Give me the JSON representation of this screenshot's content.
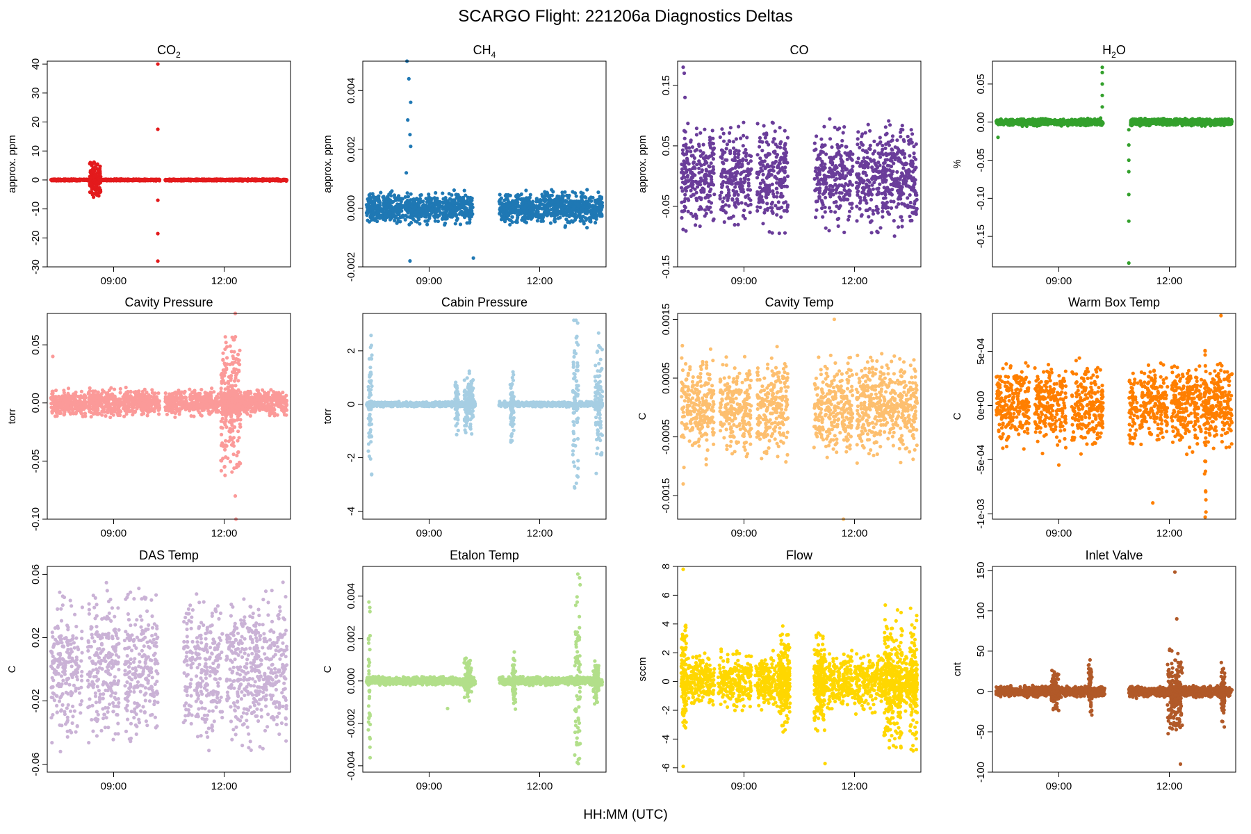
{
  "title": "SCARGO Flight: 221206a  Diagnostics Deltas",
  "xlabel": "HH:MM (UTC)",
  "colors": {
    "co2": "#e31a1c",
    "ch4": "#1f78b4",
    "co": "#6a3d9a",
    "h2o": "#33a02c",
    "cavity_pressure": "#fb9a99",
    "cabin_pressure": "#a6cee3",
    "cavity_temp": "#fdbf6f",
    "warm_box_temp": "#ff7f00",
    "das_temp": "#cab2d6",
    "etalon_temp": "#b2df8a",
    "flow": "#ffd700",
    "inlet_valve": "#b15928"
  },
  "chart_data": [
    {
      "type": "scatter",
      "key": "co2",
      "title_main": "CO",
      "title_sub": "2",
      "ylabel": "approx. ppm",
      "color": "#e31a1c",
      "xlim": [
        7.2,
        13.8
      ],
      "ylim": [
        -30,
        41
      ],
      "yticks": [
        -30,
        -20,
        -10,
        0,
        10,
        20,
        30,
        40
      ],
      "ytick_labels": [
        "-30",
        "-20",
        "-10",
        "0",
        "10",
        "20",
        "30",
        "40"
      ],
      "xticks": [
        9,
        12
      ],
      "xtick_labels": [
        "09:00",
        "12:00"
      ],
      "segments": [
        [
          7.3,
          10.25
        ],
        [
          10.4,
          13.7
        ]
      ],
      "spread": 0.4,
      "spikes": [
        [
          8.35,
          8.65,
          6.5
        ]
      ],
      "outliers": [
        [
          10.2,
          40
        ],
        [
          10.2,
          17.5
        ],
        [
          10.2,
          -7
        ],
        [
          10.2,
          -18.5
        ],
        [
          10.2,
          -28
        ]
      ]
    },
    {
      "type": "scatter",
      "key": "ch4",
      "title_main": "CH",
      "title_sub": "4",
      "ylabel": "approx. ppm",
      "color": "#1f78b4",
      "xlim": [
        7.2,
        13.8
      ],
      "ylim": [
        -0.002,
        0.005
      ],
      "yticks": [
        -0.002,
        0,
        0.002,
        0.004
      ],
      "ytick_labels": [
        "-0.002",
        "0.000",
        "0.002",
        "0.004"
      ],
      "xticks": [
        9,
        12
      ],
      "xtick_labels": [
        "09:00",
        "12:00"
      ],
      "segments": [
        [
          7.3,
          8.3
        ],
        [
          8.35,
          9.3
        ],
        [
          9.35,
          10.2
        ],
        [
          10.9,
          11.85
        ],
        [
          11.9,
          13.7
        ]
      ],
      "spread": 0.0007,
      "spikes": [],
      "outliers": [
        [
          8.4,
          0.005
        ],
        [
          8.45,
          0.0044
        ],
        [
          8.5,
          0.0036
        ],
        [
          8.42,
          0.003
        ],
        [
          8.48,
          0.0025
        ],
        [
          8.5,
          0.0021
        ],
        [
          8.38,
          0.0012
        ],
        [
          8.48,
          -0.0018
        ],
        [
          10.2,
          -0.0017
        ]
      ]
    },
    {
      "type": "scatter",
      "key": "co",
      "title_main": "CO",
      "title_sub": "",
      "ylabel": "approx. ppm",
      "color": "#6a3d9a",
      "xlim": [
        7.2,
        13.8
      ],
      "ylim": [
        -0.15,
        0.19
      ],
      "yticks": [
        -0.15,
        -0.05,
        0.05,
        0.15
      ],
      "ytick_labels": [
        "-0.15",
        "-0.05",
        "0.05",
        "0.15"
      ],
      "xticks": [
        9,
        12
      ],
      "xtick_labels": [
        "09:00",
        "12:00"
      ],
      "segments": [
        [
          7.3,
          8.2
        ],
        [
          8.35,
          9.2
        ],
        [
          9.35,
          10.2
        ],
        [
          10.9,
          11.25
        ],
        [
          11.3,
          11.95
        ],
        [
          12.05,
          13.7
        ]
      ],
      "spread": 0.11,
      "spikes": [],
      "outliers": [
        [
          7.35,
          0.18
        ],
        [
          7.38,
          0.17
        ],
        [
          7.4,
          0.13
        ]
      ]
    },
    {
      "type": "scatter",
      "key": "h2o",
      "title_main": "H",
      "title_sub": "2",
      "title_after": "O",
      "ylabel": "%",
      "color": "#33a02c",
      "xlim": [
        7.2,
        13.8
      ],
      "ylim": [
        -0.19,
        0.08
      ],
      "yticks": [
        -0.15,
        -0.1,
        -0.05,
        0,
        0.05
      ],
      "ytick_labels": [
        "-0.15",
        "-0.10",
        "-0.05",
        "0.00",
        "0.05"
      ],
      "xticks": [
        9,
        12
      ],
      "xtick_labels": [
        "09:00",
        "12:00"
      ],
      "segments": [
        [
          7.3,
          10.2
        ],
        [
          10.95,
          13.7
        ]
      ],
      "spread": 0.006,
      "spikes": [],
      "outliers": [
        [
          10.18,
          0.072
        ],
        [
          10.18,
          0.065
        ],
        [
          10.18,
          0.05
        ],
        [
          10.18,
          0.035
        ],
        [
          10.18,
          0.02
        ],
        [
          7.35,
          -0.02
        ],
        [
          10.9,
          -0.01
        ],
        [
          10.9,
          -0.03
        ],
        [
          10.9,
          -0.05
        ],
        [
          10.9,
          -0.065
        ],
        [
          10.9,
          -0.095
        ],
        [
          10.9,
          -0.13
        ],
        [
          10.9,
          -0.185
        ]
      ]
    },
    {
      "type": "scatter",
      "key": "cavity_pressure",
      "title_main": "Cavity Pressure",
      "ylabel": "torr",
      "color": "#fb9a99",
      "xlim": [
        7.2,
        13.8
      ],
      "ylim": [
        -0.1,
        0.077
      ],
      "yticks": [
        -0.1,
        -0.05,
        0,
        0.05
      ],
      "ytick_labels": [
        "-0.10",
        "-0.05",
        "0.00",
        "0.05"
      ],
      "xticks": [
        9,
        12
      ],
      "xtick_labels": [
        "09:00",
        "12:00"
      ],
      "segments": [
        [
          7.3,
          8.25
        ],
        [
          8.3,
          9.2
        ],
        [
          9.25,
          10.25
        ],
        [
          10.4,
          11.0
        ],
        [
          11.05,
          11.85
        ],
        [
          11.9,
          12.5
        ],
        [
          12.5,
          13.7
        ]
      ],
      "spread": 0.015,
      "spikes": [
        [
          11.9,
          12.45,
          0.065
        ]
      ],
      "outliers": [
        [
          7.35,
          0.04
        ],
        [
          12.3,
          0.077
        ],
        [
          12.32,
          -0.1
        ],
        [
          12.3,
          -0.08
        ]
      ]
    },
    {
      "type": "scatter",
      "key": "cabin_pressure",
      "title_main": "Cabin Pressure",
      "ylabel": "torr",
      "color": "#a6cee3",
      "xlim": [
        7.2,
        13.8
      ],
      "ylim": [
        -4.3,
        3.4
      ],
      "yticks": [
        -4,
        -2,
        0,
        2
      ],
      "ytick_labels": [
        "-4",
        "-2",
        "0",
        "2"
      ],
      "xticks": [
        9,
        12
      ],
      "xtick_labels": [
        "09:00",
        "12:00"
      ],
      "segments": [
        [
          7.3,
          10.25
        ],
        [
          10.9,
          13.7
        ]
      ],
      "spread": 0.12,
      "spikes": [
        [
          7.35,
          7.45,
          3.2
        ],
        [
          9.7,
          9.8,
          1.3
        ],
        [
          9.95,
          10.2,
          1.3
        ],
        [
          11.2,
          11.3,
          1.5
        ],
        [
          12.9,
          13.05,
          4.2
        ],
        [
          13.5,
          13.7,
          3.0
        ]
      ],
      "outliers": []
    },
    {
      "type": "scatter",
      "key": "cavity_temp",
      "title_main": "Cavity Temp",
      "ylabel": "C",
      "color": "#fdbf6f",
      "xlim": [
        7.2,
        13.8
      ],
      "ylim": [
        -0.0019,
        0.0016
      ],
      "yticks": [
        -0.0015,
        -0.0005,
        0.0005,
        0.0015
      ],
      "ytick_labels": [
        "-0.0015",
        "-0.0005",
        "0.0005",
        "0.0015"
      ],
      "xticks": [
        9,
        12
      ],
      "xtick_labels": [
        "09:00",
        "12:00"
      ],
      "segments": [
        [
          7.3,
          8.2
        ],
        [
          8.35,
          9.2
        ],
        [
          9.35,
          10.2
        ],
        [
          10.9,
          11.15
        ],
        [
          11.2,
          11.95
        ],
        [
          12.05,
          13.7
        ]
      ],
      "spread": 0.0011,
      "spikes": [],
      "outliers": [
        [
          11.45,
          0.0015
        ],
        [
          11.7,
          -0.0019
        ],
        [
          7.35,
          -0.0013
        ]
      ]
    },
    {
      "type": "scatter",
      "key": "warm_box_temp",
      "title_main": "Warm Box Temp",
      "ylabel": "C",
      "color": "#ff7f00",
      "xlim": [
        7.2,
        13.8
      ],
      "ylim": [
        -0.00105,
        0.00085
      ],
      "yticks": [
        -0.001,
        -0.0005,
        0,
        0.0005
      ],
      "ytick_labels": [
        "-1e-03",
        "-5e-04",
        "0e+00",
        "5e-04"
      ],
      "xticks": [
        9,
        12
      ],
      "xtick_labels": [
        "09:00",
        "12:00"
      ],
      "segments": [
        [
          7.3,
          8.2
        ],
        [
          8.35,
          9.2
        ],
        [
          9.35,
          10.2
        ],
        [
          10.9,
          11.15
        ],
        [
          11.2,
          11.95
        ],
        [
          12.05,
          13.7
        ]
      ],
      "spread": 0.0005,
      "spikes": [
        [
          12.95,
          13.0,
          0.00105
        ]
      ],
      "outliers": [
        [
          13.4,
          0.00083
        ],
        [
          11.55,
          -0.0009
        ],
        [
          9.0,
          -0.00055
        ]
      ]
    },
    {
      "type": "scatter",
      "key": "das_temp",
      "title_main": "DAS Temp",
      "ylabel": "C",
      "color": "#cab2d6",
      "xlim": [
        7.2,
        13.8
      ],
      "ylim": [
        -0.065,
        0.065
      ],
      "yticks": [
        -0.06,
        -0.02,
        0.02,
        0.06
      ],
      "ytick_labels": [
        "-0.06",
        "-0.02",
        "0.02",
        "0.06"
      ],
      "xticks": [
        9,
        12
      ],
      "xtick_labels": [
        "09:00",
        "12:00"
      ],
      "segments": [
        [
          7.3,
          8.15
        ],
        [
          8.3,
          9.15
        ],
        [
          9.3,
          10.2
        ],
        [
          10.9,
          11.15
        ],
        [
          11.2,
          11.95
        ],
        [
          12.05,
          13.7
        ]
      ],
      "spread": 0.062,
      "spikes": [],
      "outliers": []
    },
    {
      "type": "scatter",
      "key": "etalon_temp",
      "title_main": "Etalon Temp",
      "ylabel": "C",
      "color": "#b2df8a",
      "xlim": [
        7.2,
        13.8
      ],
      "ylim": [
        -0.0043,
        0.0054
      ],
      "yticks": [
        -0.004,
        -0.002,
        0,
        0.002,
        0.004
      ],
      "ytick_labels": [
        "-0.004",
        "-0.002",
        "0.000",
        "0.002",
        "0.004"
      ],
      "xticks": [
        9,
        12
      ],
      "xtick_labels": [
        "09:00",
        "12:00"
      ],
      "segments": [
        [
          7.3,
          10.25
        ],
        [
          10.9,
          13.7
        ]
      ],
      "spread": 0.00025,
      "spikes": [
        [
          7.35,
          7.4,
          0.0047
        ],
        [
          9.95,
          10.15,
          0.0012
        ],
        [
          11.25,
          11.35,
          0.0015
        ],
        [
          12.95,
          13.1,
          0.0052
        ],
        [
          13.45,
          13.6,
          0.0012
        ]
      ],
      "outliers": [
        [
          13.05,
          -0.0037
        ],
        [
          13.05,
          -0.0039
        ],
        [
          9.5,
          -0.0013
        ]
      ]
    },
    {
      "type": "scatter",
      "key": "flow",
      "title_main": "Flow",
      "ylabel": "sccm",
      "color": "#ffd700",
      "xlim": [
        7.2,
        13.8
      ],
      "ylim": [
        -6.3,
        8.0
      ],
      "yticks": [
        -6,
        -4,
        -2,
        0,
        2,
        4,
        6,
        8
      ],
      "ytick_labels": [
        "-6",
        "-4",
        "-2",
        "0",
        "2",
        "4",
        "6",
        "8"
      ],
      "xticks": [
        9,
        12
      ],
      "xtick_labels": [
        "09:00",
        "12:00"
      ],
      "segments": [
        [
          7.3,
          8.2
        ],
        [
          8.3,
          9.2
        ],
        [
          9.3,
          10.25
        ],
        [
          10.9,
          11.15
        ],
        [
          11.2,
          11.95
        ],
        [
          12.0,
          13.7
        ]
      ],
      "spread": 2.6,
      "spikes": [
        [
          7.3,
          7.45,
          5.0
        ],
        [
          9.95,
          10.25,
          4.0
        ],
        [
          10.9,
          11.2,
          4.0
        ],
        [
          12.8,
          13.3,
          5.5
        ],
        [
          13.5,
          13.7,
          5.5
        ]
      ],
      "outliers": [
        [
          7.35,
          7.8
        ],
        [
          7.35,
          -5.9
        ],
        [
          11.2,
          -5.7
        ]
      ]
    },
    {
      "type": "scatter",
      "key": "inlet_valve",
      "title_main": "Inlet Valve",
      "ylabel": "cnt",
      "color": "#b15928",
      "xlim": [
        7.2,
        13.8
      ],
      "ylim": [
        -100,
        155
      ],
      "yticks": [
        -100,
        -50,
        0,
        50,
        100,
        150
      ],
      "ytick_labels": [
        "-100",
        "-50",
        "0",
        "50",
        "100",
        "150"
      ],
      "xticks": [
        9,
        12
      ],
      "xtick_labels": [
        "09:00",
        "12:00"
      ],
      "segments": [
        [
          7.3,
          10.25
        ],
        [
          10.9,
          13.7
        ]
      ],
      "spread": 9,
      "spikes": [
        [
          11.95,
          12.35,
          60
        ],
        [
          8.8,
          9.0,
          28
        ],
        [
          9.8,
          9.9,
          45
        ],
        [
          13.4,
          13.5,
          45
        ]
      ],
      "outliers": [
        [
          12.15,
          148
        ],
        [
          12.2,
          90
        ],
        [
          12.3,
          -90
        ]
      ]
    }
  ]
}
